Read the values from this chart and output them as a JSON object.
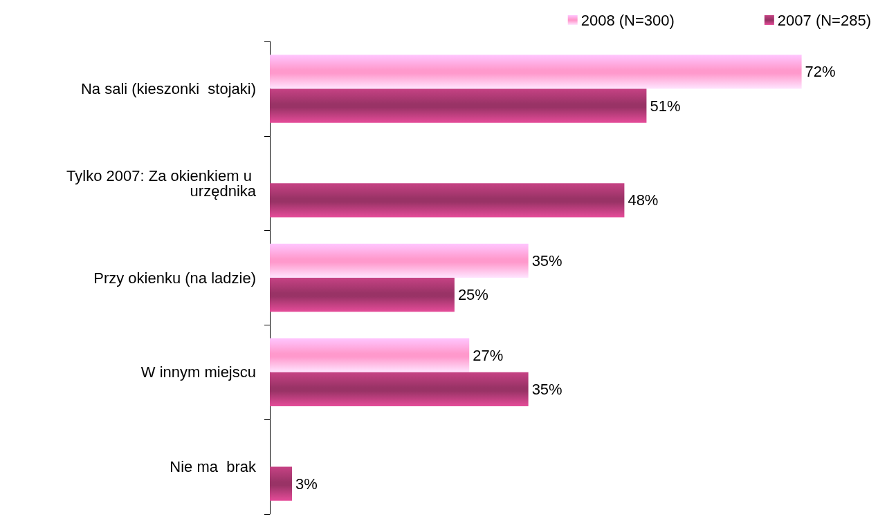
{
  "chart_data": {
    "type": "bar",
    "orientation": "horizontal",
    "legend": "top right",
    "grid": false,
    "categories": [
      "Na sali (kieszonki  stojaki)",
      "Tylko 2007: Za okienkiem u urzędnika",
      "Przy okienku (na ladzie)",
      "W innym miejscu",
      "Nie ma  brak"
    ],
    "series": [
      {
        "name": "2008 (N=300)",
        "color": "#ff99cc",
        "values": [
          72,
          null,
          35,
          27,
          null
        ],
        "value_labels": [
          "72%",
          null,
          "35%",
          "27%",
          null
        ]
      },
      {
        "name": "2007 (N=285)",
        "color": "#993366",
        "values": [
          51,
          48,
          25,
          35,
          3
        ],
        "value_labels": [
          "51%",
          "48%",
          "25%",
          "35%",
          "3%"
        ]
      }
    ]
  }
}
